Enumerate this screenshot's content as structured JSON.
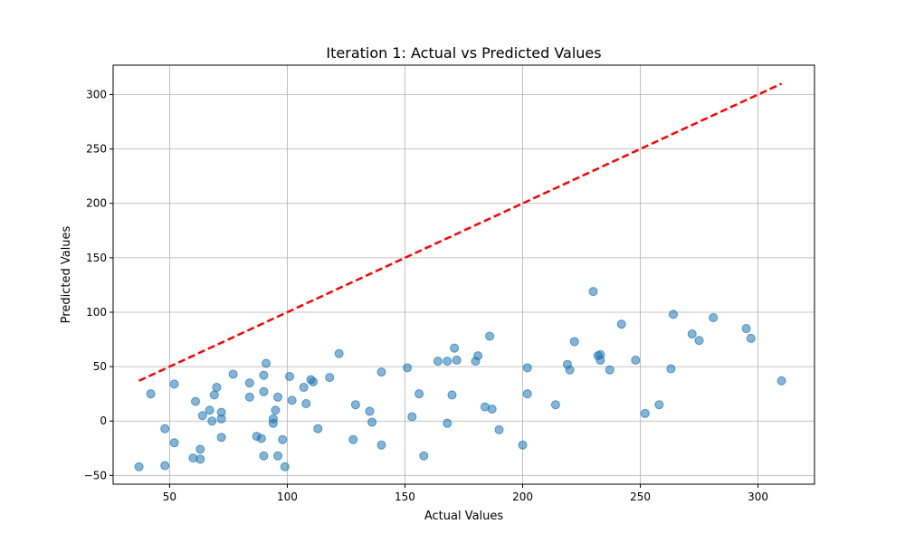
{
  "chart_data": {
    "type": "scatter",
    "title": "Iteration 1: Actual vs Predicted Values",
    "xlabel": "Actual Values",
    "ylabel": "Predicted Values",
    "xlim": [
      26,
      324
    ],
    "ylim": [
      -58,
      327
    ],
    "xticks": [
      50,
      100,
      150,
      200,
      250,
      300
    ],
    "yticks": [
      -50,
      0,
      50,
      100,
      150,
      200,
      250,
      300
    ],
    "grid": true,
    "point_color": "#1f77b4",
    "reference_line": {
      "x": [
        37,
        310
      ],
      "y": [
        37,
        310
      ],
      "color": "#ff0000",
      "style": "dashed"
    },
    "points": [
      [
        37,
        -42
      ],
      [
        42,
        25
      ],
      [
        48,
        -7
      ],
      [
        48,
        -41
      ],
      [
        52,
        34
      ],
      [
        52,
        -20
      ],
      [
        61,
        18
      ],
      [
        60,
        -34
      ],
      [
        63,
        -26
      ],
      [
        63,
        -35
      ],
      [
        64,
        5
      ],
      [
        67,
        10
      ],
      [
        68,
        0
      ],
      [
        69,
        24
      ],
      [
        70,
        31
      ],
      [
        72,
        8
      ],
      [
        72,
        2
      ],
      [
        72,
        -15
      ],
      [
        77,
        43
      ],
      [
        84,
        35
      ],
      [
        84,
        22
      ],
      [
        87,
        -14
      ],
      [
        89,
        -16
      ],
      [
        90,
        42
      ],
      [
        90,
        27
      ],
      [
        90,
        -32
      ],
      [
        91,
        53
      ],
      [
        94,
        2
      ],
      [
        94,
        -2
      ],
      [
        95,
        10
      ],
      [
        96,
        22
      ],
      [
        96,
        -32
      ],
      [
        98,
        -17
      ],
      [
        99,
        -42
      ],
      [
        101,
        41
      ],
      [
        102,
        19
      ],
      [
        107,
        31
      ],
      [
        108,
        16
      ],
      [
        110,
        38
      ],
      [
        111,
        36
      ],
      [
        113,
        -7
      ],
      [
        118,
        40
      ],
      [
        122,
        62
      ],
      [
        128,
        -17
      ],
      [
        129,
        15
      ],
      [
        135,
        9
      ],
      [
        136,
        -1
      ],
      [
        140,
        45
      ],
      [
        140,
        -22
      ],
      [
        151,
        49
      ],
      [
        153,
        4
      ],
      [
        156,
        25
      ],
      [
        158,
        -32
      ],
      [
        164,
        55
      ],
      [
        168,
        55
      ],
      [
        168,
        -2
      ],
      [
        170,
        24
      ],
      [
        171,
        67
      ],
      [
        172,
        56
      ],
      [
        180,
        55
      ],
      [
        181,
        60
      ],
      [
        184,
        13
      ],
      [
        186,
        78
      ],
      [
        187,
        11
      ],
      [
        190,
        -8
      ],
      [
        200,
        -22
      ],
      [
        202,
        25
      ],
      [
        202,
        49
      ],
      [
        214,
        15
      ],
      [
        219,
        52
      ],
      [
        220,
        47
      ],
      [
        222,
        73
      ],
      [
        230,
        119
      ],
      [
        232,
        60
      ],
      [
        233,
        61
      ],
      [
        233,
        56
      ],
      [
        237,
        47
      ],
      [
        242,
        89
      ],
      [
        248,
        56
      ],
      [
        252,
        7
      ],
      [
        258,
        15
      ],
      [
        263,
        48
      ],
      [
        264,
        98
      ],
      [
        272,
        80
      ],
      [
        275,
        74
      ],
      [
        281,
        95
      ],
      [
        295,
        85
      ],
      [
        297,
        76
      ],
      [
        310,
        37
      ]
    ]
  }
}
